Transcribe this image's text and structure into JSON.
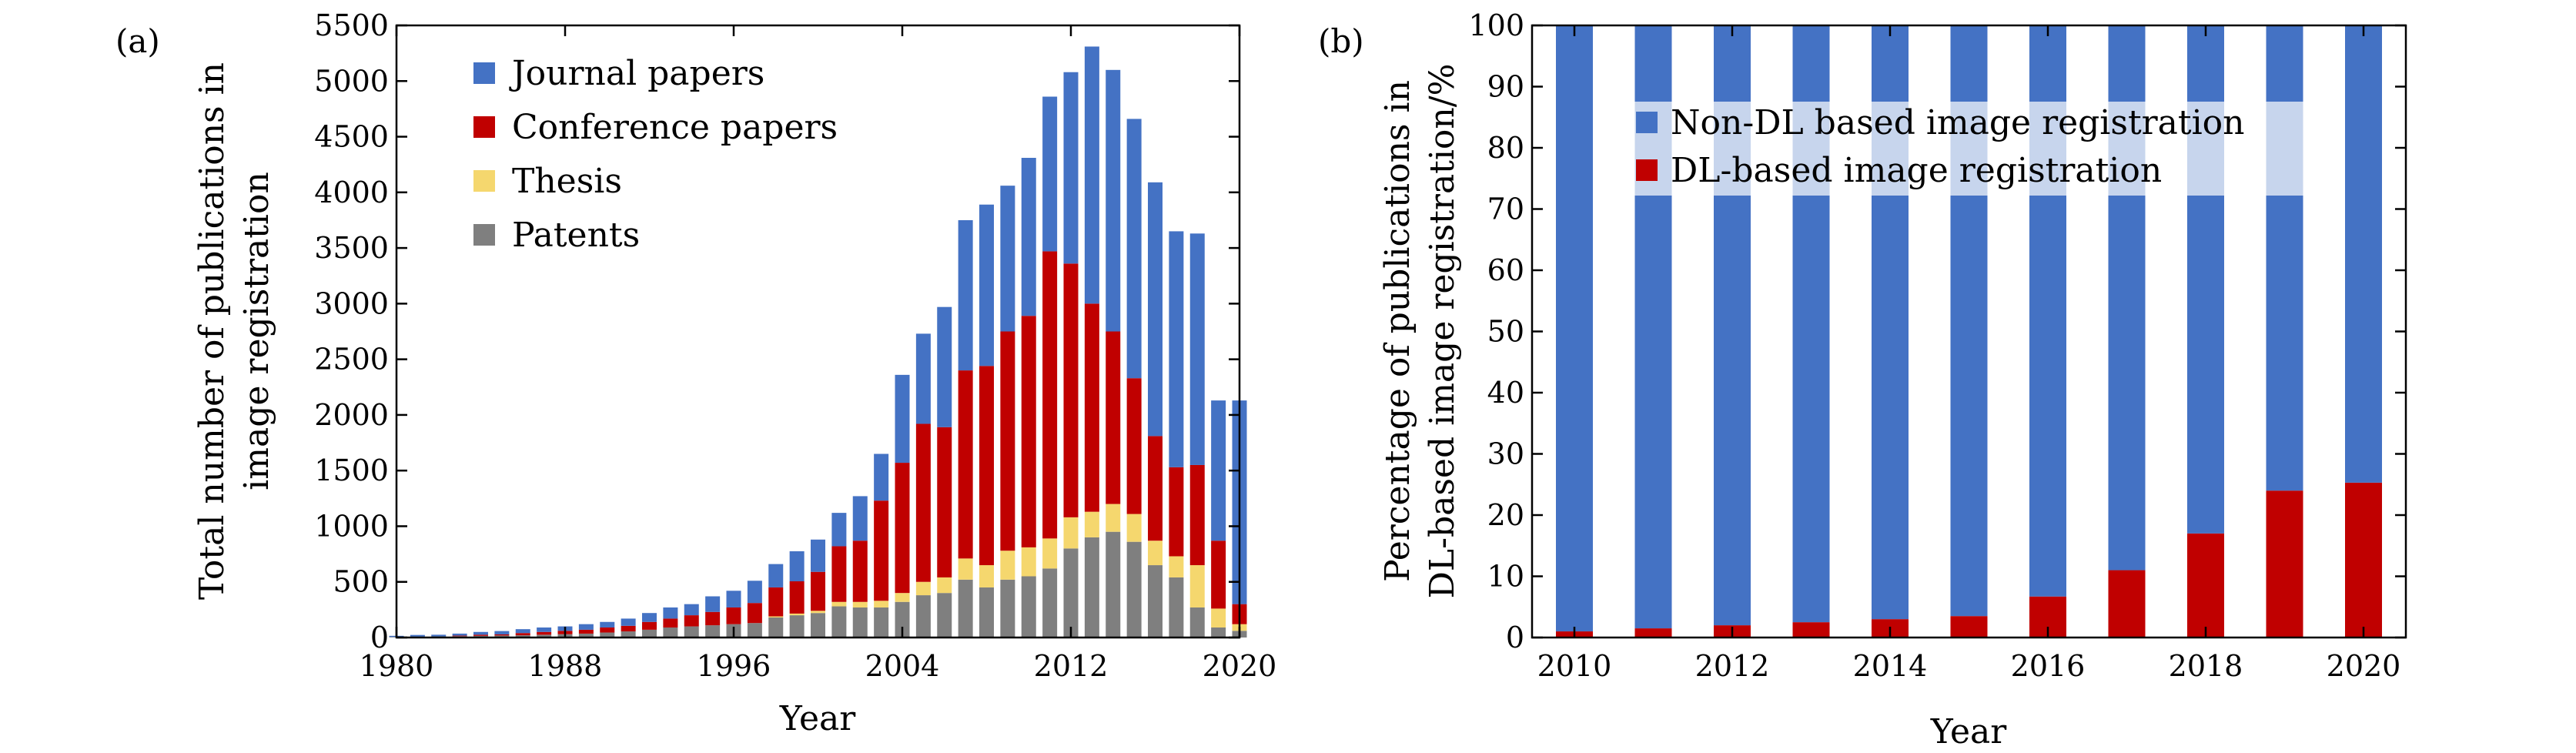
{
  "panels": {
    "a": "(a)",
    "b": "(b)"
  },
  "chart_data": [
    {
      "type": "bar",
      "stacked": true,
      "panel": "(a)",
      "title": "",
      "xlabel": "Year",
      "ylabel": [
        "Total number of publications in",
        "image registration"
      ],
      "ylim": [
        0,
        5500
      ],
      "yticks": [
        0,
        500,
        1000,
        1500,
        2000,
        2500,
        3000,
        3500,
        4000,
        4500,
        5000,
        5500
      ],
      "xticks": [
        "1980",
        "1988",
        "1996",
        "2004",
        "2012",
        "2020"
      ],
      "legend_position": "top-left",
      "categories": [
        1980,
        1981,
        1982,
        1983,
        1984,
        1985,
        1986,
        1987,
        1988,
        1989,
        1990,
        1991,
        1992,
        1993,
        1994,
        1995,
        1996,
        1997,
        1998,
        1999,
        2000,
        2001,
        2002,
        2003,
        2004,
        2005,
        2006,
        2007,
        2008,
        2009,
        2010,
        2011,
        2012,
        2013,
        2014,
        2015,
        2016,
        2017,
        2018,
        2019,
        2020
      ],
      "series": [
        {
          "name": "Patents",
          "color": "#7f7f7f",
          "values": [
            5,
            8,
            10,
            12,
            15,
            18,
            20,
            25,
            30,
            35,
            45,
            55,
            70,
            90,
            100,
            110,
            120,
            130,
            180,
            200,
            220,
            280,
            270,
            270,
            320,
            380,
            400,
            520,
            450,
            520,
            550,
            620,
            800,
            900,
            950,
            860,
            650,
            540,
            270,
            90,
            60
          ]
        },
        {
          "name": "Thesis",
          "color": "#f5d76e",
          "values": [
            0,
            0,
            0,
            0,
            0,
            0,
            0,
            0,
            0,
            0,
            0,
            0,
            0,
            0,
            0,
            0,
            0,
            0,
            10,
            15,
            20,
            40,
            50,
            60,
            80,
            120,
            140,
            190,
            200,
            260,
            260,
            270,
            280,
            230,
            250,
            250,
            220,
            190,
            380,
            170,
            60
          ]
        },
        {
          "name": "Conference papers",
          "color": "#c00000",
          "values": [
            0,
            0,
            0,
            5,
            10,
            10,
            20,
            25,
            30,
            35,
            45,
            50,
            70,
            80,
            100,
            120,
            150,
            180,
            260,
            290,
            350,
            500,
            550,
            900,
            1170,
            1420,
            1350,
            1690,
            1790,
            1970,
            2080,
            2580,
            2280,
            1870,
            1550,
            1220,
            940,
            800,
            900,
            610,
            180
          ]
        },
        {
          "name": "Journal papers",
          "color": "#4472c4",
          "values": [
            10,
            15,
            15,
            18,
            25,
            30,
            35,
            40,
            40,
            50,
            50,
            65,
            80,
            100,
            100,
            140,
            150,
            200,
            210,
            270,
            290,
            300,
            400,
            420,
            790,
            810,
            1080,
            1350,
            1450,
            1310,
            1420,
            1390,
            1720,
            2310,
            2350,
            2330,
            2280,
            2120,
            2080,
            1260,
            1830
          ]
        }
      ]
    },
    {
      "type": "bar",
      "stacked": true,
      "panel": "(b)",
      "title": "",
      "xlabel": "Year",
      "ylabel": [
        "Percentage of publications in",
        "DL-based image registration/%"
      ],
      "ylim": [
        0,
        100
      ],
      "yticks": [
        0,
        10,
        20,
        30,
        40,
        50,
        60,
        70,
        80,
        90,
        100
      ],
      "xticks": [
        "2010",
        "2012",
        "2014",
        "2016",
        "2018",
        "2020"
      ],
      "legend_position": "top",
      "categories": [
        2010,
        2011,
        2012,
        2013,
        2014,
        2015,
        2016,
        2017,
        2018,
        2019,
        2020
      ],
      "series": [
        {
          "name": "DL-based image registration",
          "color": "#c00000",
          "values": [
            1.0,
            1.5,
            2.0,
            2.5,
            3.0,
            3.5,
            6.7,
            11.0,
            17.0,
            24.0,
            25.3
          ]
        },
        {
          "name": "Non-DL based image registration",
          "color": "#4472c4",
          "values": [
            99.0,
            98.5,
            98.0,
            97.5,
            97.0,
            96.5,
            93.3,
            89.0,
            83.0,
            76.0,
            74.7
          ]
        }
      ]
    }
  ]
}
